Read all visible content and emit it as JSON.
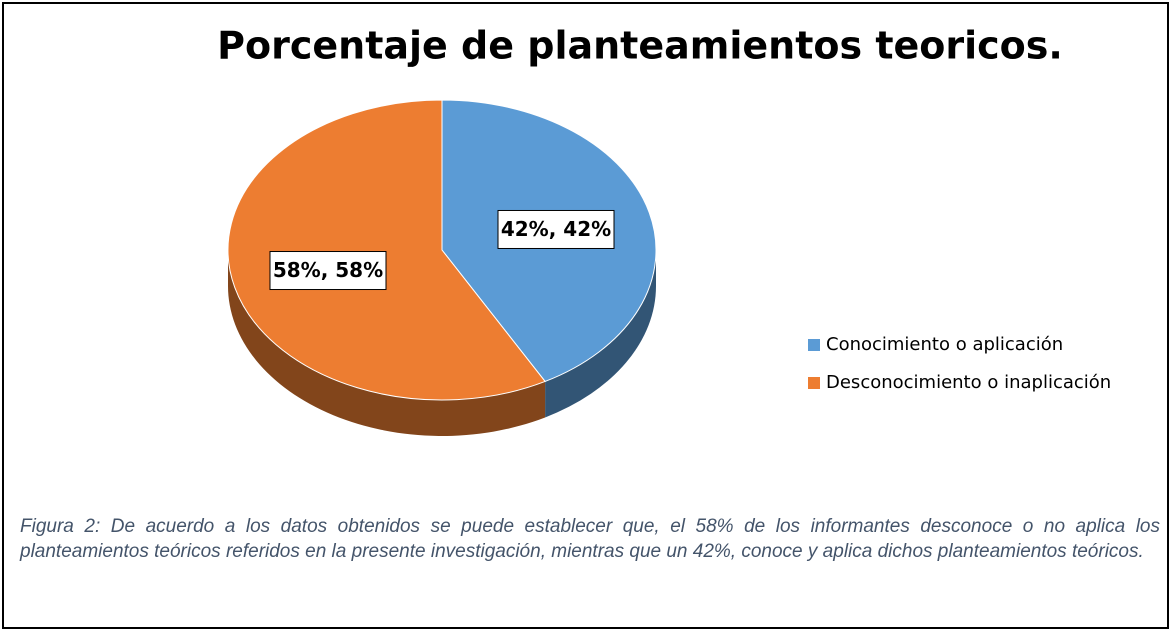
{
  "chart_data": {
    "type": "pie",
    "title": "Porcentaje de planteamientos teoricos.",
    "categories": [
      "Conocimiento o aplicación",
      "Desconocimiento o inaplicación"
    ],
    "values": [
      42,
      58
    ],
    "value_labels": [
      "42%, 42%",
      "58%, 58%"
    ],
    "colors": [
      "#5b9bd5",
      "#ed7d31"
    ],
    "caption": "Figura 2: De acuerdo a los datos obtenidos se puede establecer que, el 58% de los informantes desconoce o no aplica los planteamientos teóricos referidos en la presente investigación, mientras que un 42%, conoce y aplica dichos planteamientos teóricos."
  }
}
